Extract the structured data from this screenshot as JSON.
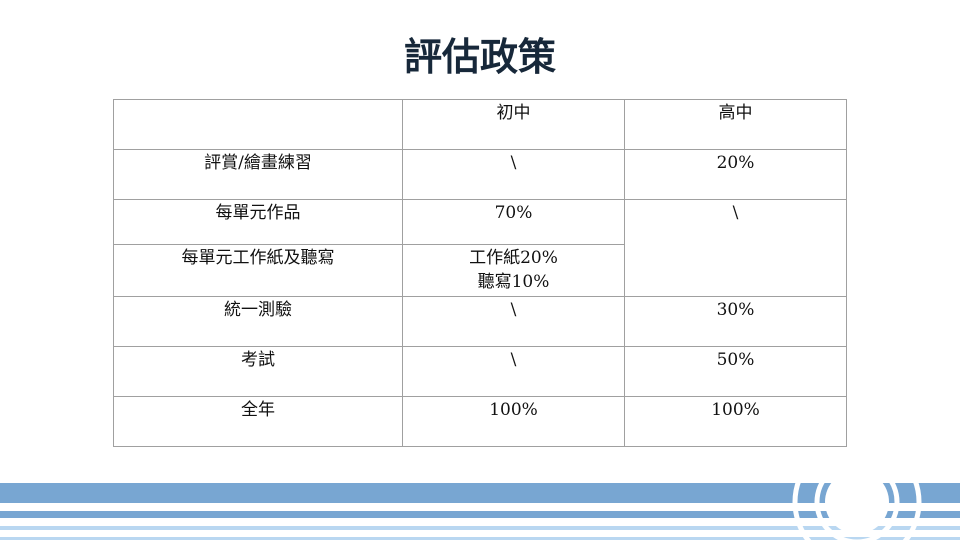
{
  "title": "評估政策",
  "table": {
    "headers": [
      "",
      "初中",
      "高中"
    ],
    "rows": [
      {
        "item": "評賞/繪畫練習",
        "junior": "\\",
        "senior": "20%"
      },
      {
        "item": "每單元作品",
        "junior": "70%",
        "senior": "\\"
      },
      {
        "item": "每單元工作紙及聽寫",
        "junior_lines": [
          "工作紙20%",
          "聽寫10%"
        ]
      },
      {
        "item": "統一測驗",
        "junior": "\\",
        "senior": "30%"
      },
      {
        "item": "考試",
        "junior": "\\",
        "senior": "50%"
      },
      {
        "item": "全年",
        "junior": "100%",
        "senior": "100%"
      }
    ]
  },
  "colors": {
    "band_dark": "#78a6d2",
    "band_light": "#b9d7f1",
    "title": "#17283a"
  }
}
